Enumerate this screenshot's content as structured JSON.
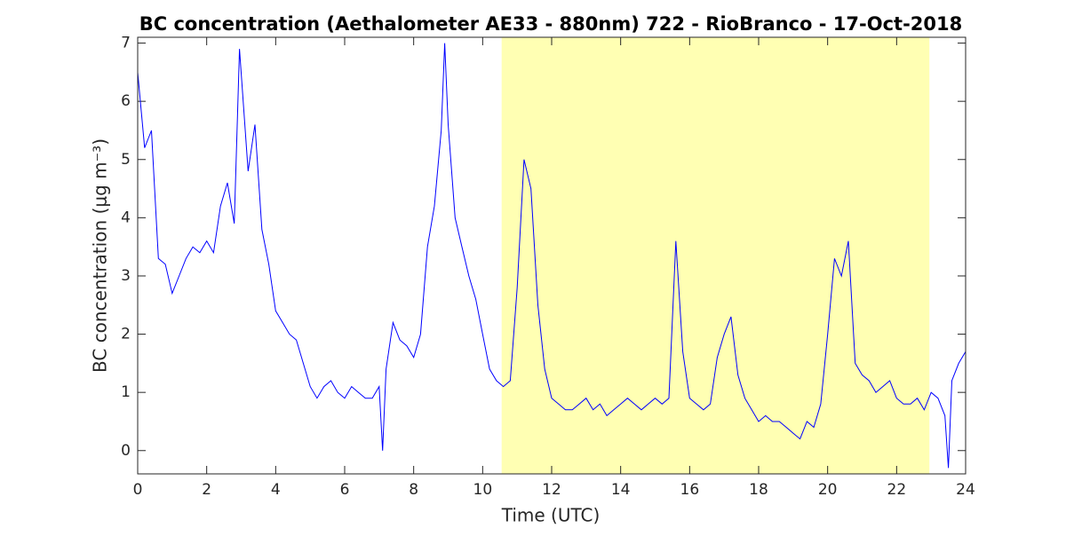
{
  "chart_data": {
    "type": "line",
    "title": "BC concentration (Aethalometer AE33 - 880nm) 722 - RioBranco - 17-Oct-2018",
    "xlabel": "Time (UTC)",
    "ylabel": "BC concentration (μg m⁻³)",
    "xlim": [
      0,
      24
    ],
    "xticks": [
      0,
      2,
      4,
      6,
      8,
      10,
      12,
      14,
      16,
      18,
      20,
      22,
      24
    ],
    "ylim": [
      -0.4,
      7.1
    ],
    "yticks": [
      0,
      1,
      2,
      3,
      4,
      5,
      6,
      7
    ],
    "shade": [
      10.55,
      22.95
    ],
    "shade_color": "#ffffb3",
    "x": [
      0,
      0.2,
      0.4,
      0.6,
      0.8,
      1.0,
      1.2,
      1.4,
      1.6,
      1.8,
      2.0,
      2.2,
      2.4,
      2.6,
      2.8,
      2.95,
      3.2,
      3.4,
      3.6,
      3.8,
      4.0,
      4.2,
      4.4,
      4.6,
      4.8,
      5.0,
      5.2,
      5.4,
      5.6,
      5.8,
      6.0,
      6.2,
      6.4,
      6.6,
      6.8,
      7.0,
      7.1,
      7.2,
      7.4,
      7.6,
      7.8,
      8.0,
      8.2,
      8.4,
      8.6,
      8.8,
      8.9,
      9.0,
      9.2,
      9.4,
      9.6,
      9.8,
      10.0,
      10.2,
      10.4,
      10.6,
      10.8,
      11.0,
      11.2,
      11.4,
      11.6,
      11.8,
      12.0,
      12.2,
      12.4,
      12.6,
      12.8,
      13.0,
      13.2,
      13.4,
      13.6,
      13.8,
      14.0,
      14.2,
      14.4,
      14.6,
      14.8,
      15.0,
      15.2,
      15.4,
      15.6,
      15.8,
      16.0,
      16.2,
      16.4,
      16.6,
      16.8,
      17.0,
      17.2,
      17.4,
      17.6,
      17.8,
      18.0,
      18.2,
      18.4,
      18.6,
      18.8,
      19.0,
      19.2,
      19.4,
      19.6,
      19.8,
      20.0,
      20.2,
      20.4,
      20.6,
      20.8,
      21.0,
      21.2,
      21.4,
      21.6,
      21.8,
      22.0,
      22.2,
      22.4,
      22.6,
      22.8,
      23.0,
      23.2,
      23.4,
      23.5,
      23.6,
      23.8,
      24.0
    ],
    "series": [
      {
        "color": "#0000ff",
        "values": [
          6.5,
          5.2,
          5.5,
          3.3,
          3.2,
          2.7,
          3.0,
          3.3,
          3.5,
          3.4,
          3.6,
          3.4,
          4.2,
          4.6,
          3.9,
          6.9,
          4.8,
          5.6,
          3.8,
          3.2,
          2.4,
          2.2,
          2.0,
          1.9,
          1.5,
          1.1,
          0.9,
          1.1,
          1.2,
          1.0,
          0.9,
          1.1,
          1.0,
          0.9,
          0.9,
          1.1,
          0.0,
          1.4,
          2.2,
          1.9,
          1.8,
          1.6,
          2.0,
          3.5,
          4.2,
          5.5,
          7.0,
          5.6,
          4.0,
          3.5,
          3.0,
          2.6,
          2.0,
          1.4,
          1.2,
          1.1,
          1.2,
          2.8,
          5.0,
          4.5,
          2.5,
          1.4,
          0.9,
          0.8,
          0.7,
          0.7,
          0.8,
          0.9,
          0.7,
          0.8,
          0.6,
          0.7,
          0.8,
          0.9,
          0.8,
          0.7,
          0.8,
          0.9,
          0.8,
          0.9,
          3.6,
          1.7,
          0.9,
          0.8,
          0.7,
          0.8,
          1.6,
          2.0,
          2.3,
          1.3,
          0.9,
          0.7,
          0.5,
          0.6,
          0.5,
          0.5,
          0.4,
          0.3,
          0.2,
          0.5,
          0.4,
          0.8,
          2.0,
          3.3,
          3.0,
          3.6,
          1.5,
          1.3,
          1.2,
          1.0,
          1.1,
          1.2,
          0.9,
          0.8,
          0.8,
          0.9,
          0.7,
          1.0,
          0.9,
          0.6,
          -0.3,
          1.2,
          1.5,
          1.7
        ]
      }
    ]
  }
}
